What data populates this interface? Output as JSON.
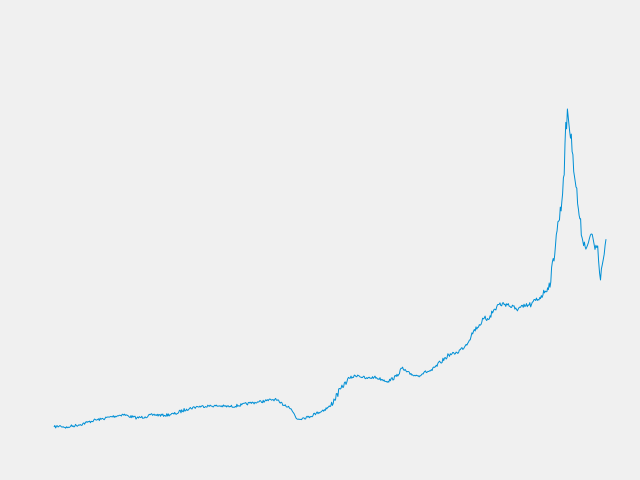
{
  "chart_data": {
    "type": "line",
    "title": "",
    "xlabel": "",
    "ylabel": "",
    "grid": false,
    "legend": "none",
    "axes_visible": false,
    "x_range": [
      0,
      100
    ],
    "y_range": [
      0,
      100
    ],
    "series": [
      {
        "color": "#008fd5",
        "x": [
          0,
          1.2,
          2.4,
          3.0,
          4.5,
          6.0,
          7.2,
          8.5,
          10.0,
          11.5,
          12.5,
          13.5,
          15.0,
          16.5,
          18.0,
          20.0,
          22.0,
          24.0,
          26.0,
          28.0,
          30.0,
          32.0,
          34.0,
          35.5,
          37.0,
          38.5,
          40.0,
          41.0,
          42.5,
          43.5,
          44.0,
          45.0,
          46.0,
          47.5,
          48.0,
          50.0,
          52.0,
          53.5,
          55.0,
          56.5,
          58.0,
          59.5,
          60.5,
          62.0,
          63.0,
          64.5,
          66.0,
          67.0,
          68.5,
          70.0,
          71.5,
          73.0,
          74.5,
          76.0,
          77.5,
          79.0,
          80.5,
          82.0,
          83.5,
          85.0,
          86.5,
          88.0,
          89.0,
          90.0,
          91.0,
          92.0,
          93.0,
          94.0,
          95.0,
          95.8,
          96.5,
          97.0,
          97.5,
          98.0,
          98.5,
          99.0,
          99.5,
          100.0
        ],
        "y": [
          0.0,
          0.3,
          -0.2,
          0.2,
          0.6,
          1.3,
          1.9,
          2.2,
          2.8,
          3.2,
          3.6,
          3.1,
          2.6,
          2.9,
          3.5,
          3.3,
          3.8,
          5.1,
          5.8,
          6.0,
          6.0,
          5.8,
          6.3,
          6.8,
          7.1,
          7.5,
          7.9,
          6.8,
          5.9,
          3.8,
          2.3,
          2.5,
          2.8,
          3.9,
          4.2,
          5.8,
          11.0,
          13.9,
          14.8,
          13.8,
          14.2,
          13.5,
          13.0,
          14.4,
          16.7,
          15.0,
          14.6,
          15.5,
          16.1,
          18.4,
          20.5,
          21.2,
          23.1,
          27.3,
          29.9,
          31.7,
          34.9,
          35.1,
          33.6,
          34.1,
          34.9,
          36.9,
          38.7,
          41.3,
          54.8,
          64.1,
          90.6,
          77.6,
          62.1,
          53.0,
          51.2,
          53.7,
          54.9,
          50.6,
          51.6,
          41.9,
          47.6,
          53.5
        ]
      }
    ]
  }
}
